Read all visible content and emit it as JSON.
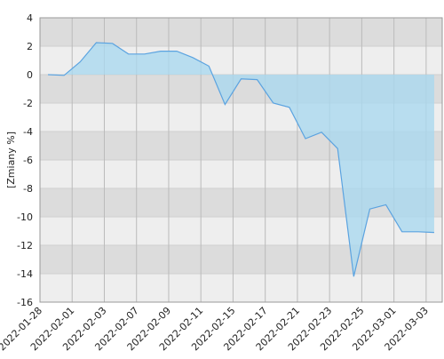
{
  "chart_data": {
    "type": "area",
    "y_label": "[Zmiany %]",
    "categories": [
      "2022-01-28",
      null,
      "2022-02-01",
      null,
      "2022-02-03",
      null,
      "2022-02-07",
      null,
      "2022-02-09",
      null,
      "2022-02-11",
      null,
      "2022-02-15",
      null,
      "2022-02-17",
      null,
      "2022-02-21",
      null,
      "2022-02-23",
      null,
      "2022-02-25",
      null,
      "2022-03-01",
      null,
      "2022-03-03"
    ],
    "values": [
      0,
      -0.05,
      0.9,
      2.25,
      2.2,
      1.45,
      1.45,
      1.65,
      1.65,
      1.2,
      0.6,
      -2.1,
      -0.3,
      -0.35,
      -2.0,
      -2.3,
      -4.5,
      -4.05,
      -5.2,
      -14.2,
      -9.45,
      -9.15,
      -11.05,
      -11.05,
      -11.1
    ],
    "color": "#5ba3e0",
    "ylim": [
      -16,
      4
    ],
    "yticks": [
      -16,
      -14,
      -12,
      -10,
      -8,
      -6,
      -4,
      -2,
      0,
      2,
      4
    ],
    "grid": true
  }
}
